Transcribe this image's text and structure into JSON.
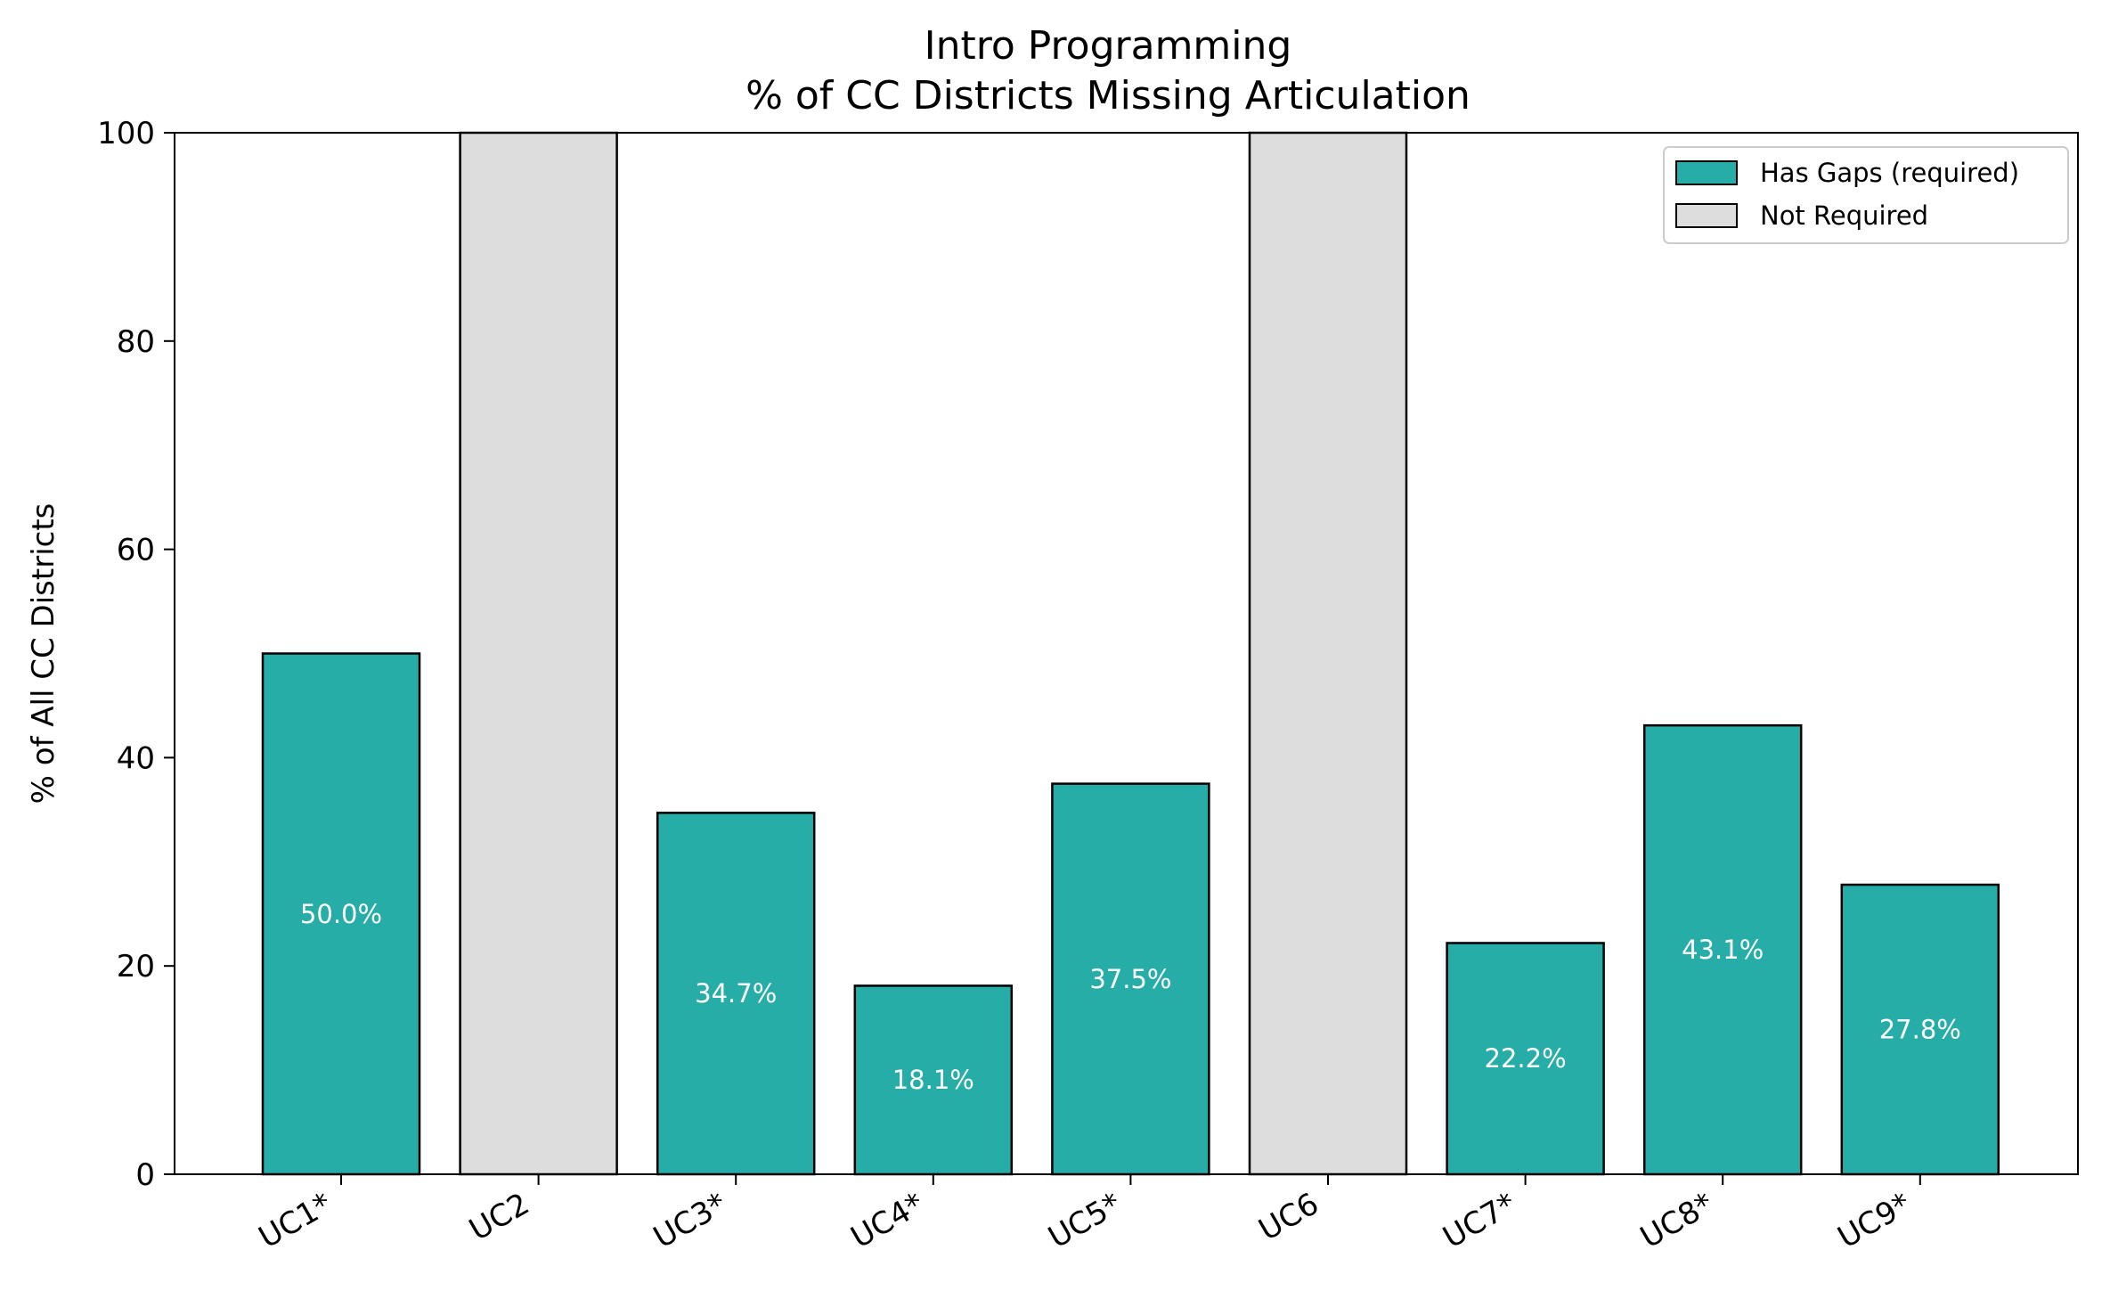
{
  "chart_data": {
    "type": "bar",
    "title": [
      "Intro Programming",
      "% of CC Districts Missing Articulation"
    ],
    "ylabel": "% of All CC Districts",
    "xlabel": "",
    "ylim": [
      0,
      100
    ],
    "yticks": [
      0,
      20,
      40,
      60,
      80,
      100
    ],
    "grid": false,
    "legend_position": "top-right",
    "categories": [
      "UC1*",
      "UC2",
      "UC3*",
      "UC4*",
      "UC5*",
      "UC6",
      "UC7*",
      "UC8*",
      "UC9*"
    ],
    "bars": [
      {
        "category": "UC1*",
        "value": 50.0,
        "status": "required",
        "label": "50.0%"
      },
      {
        "category": "UC2",
        "value": 100,
        "status": "not_required",
        "label": ""
      },
      {
        "category": "UC3*",
        "value": 34.7,
        "status": "required",
        "label": "34.7%"
      },
      {
        "category": "UC4*",
        "value": 18.1,
        "status": "required",
        "label": "18.1%"
      },
      {
        "category": "UC5*",
        "value": 37.5,
        "status": "required",
        "label": "37.5%"
      },
      {
        "category": "UC6",
        "value": 100,
        "status": "not_required",
        "label": ""
      },
      {
        "category": "UC7*",
        "value": 22.2,
        "status": "required",
        "label": "22.2%"
      },
      {
        "category": "UC8*",
        "value": 43.1,
        "status": "required",
        "label": "43.1%"
      },
      {
        "category": "UC9*",
        "value": 27.8,
        "status": "required",
        "label": "27.8%"
      }
    ],
    "legend": [
      {
        "label": "Has Gaps (required)",
        "status": "required"
      },
      {
        "label": "Not Required",
        "status": "not_required"
      }
    ],
    "colors": {
      "required": "#26ada7",
      "not_required": "#dddddd",
      "edge": "#000000"
    }
  }
}
